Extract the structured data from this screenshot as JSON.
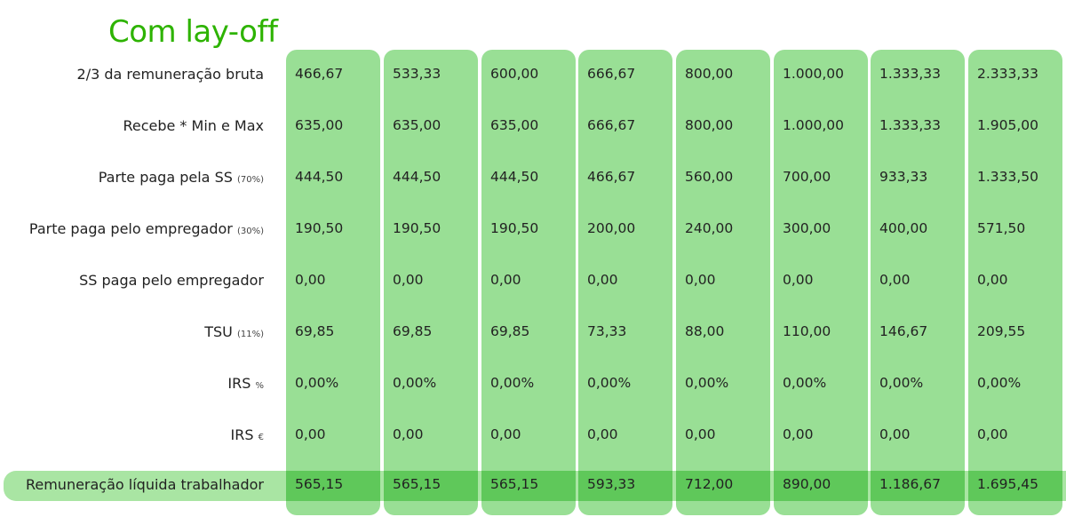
{
  "title": "Com lay-off",
  "rows": [
    {
      "label": "2/3 da remuneração bruta",
      "note": "",
      "values": [
        "466,67",
        "533,33",
        "600,00",
        "666,67",
        "800,00",
        "1.000,00",
        "1.333,33",
        "2.333,33"
      ]
    },
    {
      "label": "Recebe * Min e Max",
      "note": "",
      "values": [
        "635,00",
        "635,00",
        "635,00",
        "666,67",
        "800,00",
        "1.000,00",
        "1.333,33",
        "1.905,00"
      ]
    },
    {
      "label": "Parte paga pela SS",
      "note": "(70%)",
      "values": [
        "444,50",
        "444,50",
        "444,50",
        "466,67",
        "560,00",
        "700,00",
        "933,33",
        "1.333,50"
      ]
    },
    {
      "label": "Parte paga pelo empregador",
      "note": "(30%)",
      "values": [
        "190,50",
        "190,50",
        "190,50",
        "200,00",
        "240,00",
        "300,00",
        "400,00",
        "571,50"
      ]
    },
    {
      "label": "SS paga pelo empregador",
      "note": "",
      "values": [
        "0,00",
        "0,00",
        "0,00",
        "0,00",
        "0,00",
        "0,00",
        "0,00",
        "0,00"
      ]
    },
    {
      "label": "TSU",
      "note": "(11%)",
      "values": [
        "69,85",
        "69,85",
        "69,85",
        "73,33",
        "88,00",
        "110,00",
        "146,67",
        "209,55"
      ]
    },
    {
      "label": "IRS",
      "note": "%",
      "values": [
        "0,00%",
        "0,00%",
        "0,00%",
        "0,00%",
        "0,00%",
        "0,00%",
        "0,00%",
        "0,00%"
      ]
    },
    {
      "label": "IRS",
      "note": "€",
      "values": [
        "0,00",
        "0,00",
        "0,00",
        "0,00",
        "0,00",
        "0,00",
        "0,00",
        "0,00"
      ]
    }
  ],
  "result": {
    "label": "Remuneração líquida trabalhador",
    "values": [
      "565,15",
      "565,15",
      "565,15",
      "593,33",
      "712,00",
      "890,00",
      "1.186,67",
      "1.695,45"
    ]
  },
  "colors": {
    "title": "#2db300",
    "column": "#99df95",
    "result_band": "#a9e5a3",
    "result_cell": "#5fc85a"
  }
}
